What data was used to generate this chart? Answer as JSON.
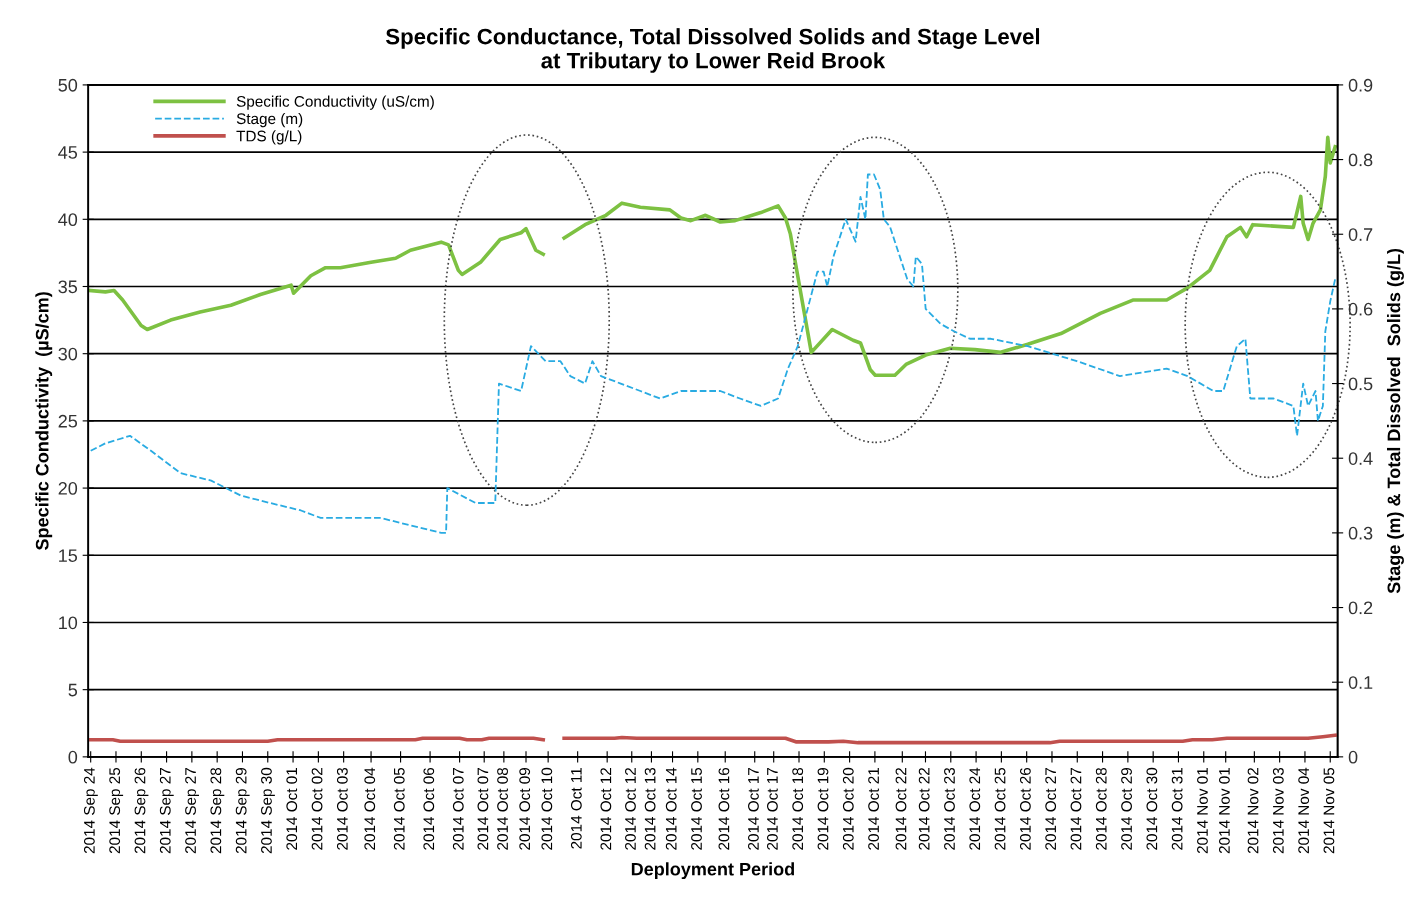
{
  "chart_data": {
    "type": "line",
    "title": "Specific Conductance, Total Dissolved Solids and Stage Level\nat Tributary to Lower Reid Brook",
    "xlabel": "Deployment Period",
    "ylabel": "Specific Conductivity  (µS/cm)",
    "y2label": "Stage (m) & Total Dissolved  Solids (g/L)",
    "xlim": [
      "2014-09-24T10:00",
      "2014-11-05T18:00"
    ],
    "xticks": [
      {
        "value": "2014-09-24T12:00",
        "label": "2014 Sep 24"
      },
      {
        "value": "2014-09-25T08:34",
        "label": "2014 Sep 25"
      },
      {
        "value": "2014-09-26T05:09",
        "label": "2014 Sep 26"
      },
      {
        "value": "2014-09-27T01:43",
        "label": "2014 Sep 27"
      },
      {
        "value": "2014-09-27T22:17",
        "label": "2014 Sep 27"
      },
      {
        "value": "2014-09-28T18:51",
        "label": "2014 Sep 28"
      },
      {
        "value": "2014-09-29T15:26",
        "label": "2014 Sep 29"
      },
      {
        "value": "2014-09-30T12:00",
        "label": "2014 Sep 30"
      },
      {
        "value": "2014-10-01T08:34",
        "label": "2014 Oct 01"
      },
      {
        "value": "2014-10-02T05:09",
        "label": "2014 Oct 02"
      },
      {
        "value": "2014-10-03T01:43",
        "label": "2014 Oct 03"
      },
      {
        "value": "2014-10-04T00:00",
        "label": "2014 Oct 04"
      },
      {
        "value": "2014-10-05T00:00",
        "label": "2014 Oct 05"
      },
      {
        "value": "2014-10-06T00:00",
        "label": "2014 Oct 06"
      },
      {
        "value": "2014-10-07T00:00",
        "label": "2014 Oct 07"
      },
      {
        "value": "2014-10-07T20:00",
        "label": "2014 Oct 07"
      },
      {
        "value": "2014-10-08T12:00",
        "label": "2014 Oct 08"
      },
      {
        "value": "2014-10-09T06:00",
        "label": "2014 Oct 09"
      },
      {
        "value": "2014-10-10T00:00",
        "label": "2014 Oct 10"
      },
      {
        "value": "2014-10-11T00:00",
        "label": "2014 Oct 11"
      },
      {
        "value": "2014-10-12T00:00",
        "label": "2014 Oct 12"
      },
      {
        "value": "2014-10-12T20:00",
        "label": "2014 Oct 12"
      },
      {
        "value": "2014-10-13T12:00",
        "label": "2014 Oct 13"
      },
      {
        "value": "2014-10-14T05:09",
        "label": "2014 Oct 14"
      },
      {
        "value": "2014-10-15T01:43",
        "label": "2014 Oct 15"
      },
      {
        "value": "2014-10-16T00:00",
        "label": "2014 Oct 16"
      },
      {
        "value": "2014-10-17T00:00",
        "label": "2014 Oct 17"
      },
      {
        "value": "2014-10-17T15:26",
        "label": "2014 Oct 17"
      },
      {
        "value": "2014-10-18T12:00",
        "label": "2014 Oct 18"
      },
      {
        "value": "2014-10-19T08:34",
        "label": "2014 Oct 19"
      },
      {
        "value": "2014-10-20T05:09",
        "label": "2014 Oct 20"
      },
      {
        "value": "2014-10-21T01:43",
        "label": "2014 Oct 21"
      },
      {
        "value": "2014-10-22T00:00",
        "label": "2014 Oct 22"
      },
      {
        "value": "2014-10-22T18:51",
        "label": "2014 Oct 22"
      },
      {
        "value": "2014-10-23T15:26",
        "label": "2014 Oct 23"
      },
      {
        "value": "2014-10-24T12:00",
        "label": "2014 Oct 24"
      },
      {
        "value": "2014-10-25T08:34",
        "label": "2014 Oct 25"
      },
      {
        "value": "2014-10-26T05:09",
        "label": "2014 Oct 26"
      },
      {
        "value": "2014-10-27T01:43",
        "label": "2014 Oct 27"
      },
      {
        "value": "2014-10-27T22:17",
        "label": "2014 Oct 27"
      },
      {
        "value": "2014-10-28T18:51",
        "label": "2014 Oct 28"
      },
      {
        "value": "2014-10-29T15:26",
        "label": "2014 Oct 29"
      },
      {
        "value": "2014-10-30T12:00",
        "label": "2014 Oct 30"
      },
      {
        "value": "2014-10-31T08:34",
        "label": "2014 Oct 31"
      },
      {
        "value": "2014-11-01T05:09",
        "label": "2014 Nov 01"
      },
      {
        "value": "2014-11-01T23:00",
        "label": "2014 Nov 01"
      },
      {
        "value": "2014-11-02T22:17",
        "label": "2014 Nov 02"
      },
      {
        "value": "2014-11-03T18:51",
        "label": "2014 Nov 03"
      },
      {
        "value": "2014-11-04T15:26",
        "label": "2014 Nov 04"
      },
      {
        "value": "2014-11-05T12:00",
        "label": "2014 Nov 05"
      }
    ],
    "ylim": [
      0,
      50
    ],
    "yticks": [
      0,
      5,
      10,
      15,
      20,
      25,
      30,
      35,
      40,
      45,
      50
    ],
    "y2lim": [
      0,
      0.9
    ],
    "y2ticks": [
      0,
      0.1,
      0.2,
      0.3,
      0.4,
      0.5,
      0.6,
      0.7,
      0.8,
      0.9
    ],
    "grid": "y",
    "legend": "top left",
    "series": [
      {
        "name": "Specific Conductivity (uS/cm)",
        "color": "#7dc142",
        "line_style": "solid",
        "x": [
          "2014-09-24T12:00",
          "2014-09-25T00:00",
          "2014-09-25T07:00",
          "2014-09-25T14:00",
          "2014-09-26T05:00",
          "2014-09-26T10:00",
          "2014-09-27T05:00",
          "2014-09-28T05:00",
          "2014-09-29T06:00",
          "2014-09-30T06:00",
          "2014-10-01T07:00",
          "2014-10-01T09:00",
          "2014-10-01T23:00",
          "2014-10-02T11:00",
          "2014-10-02T23:00",
          "2014-10-04T00:00",
          "2014-10-04T20:00",
          "2014-10-05T08:00",
          "2014-10-06T09:00",
          "2014-10-06T15:00",
          "2014-10-06T23:00",
          "2014-10-07T02:00",
          "2014-10-07T17:00",
          "2014-10-08T09:00",
          "2014-10-09T02:00",
          "2014-10-09T06:00",
          "2014-10-09T14:00",
          "2014-10-09T20:00",
          "2014-10-10T02:00",
          "2014-10-10T13:00",
          "2014-10-11T06:00",
          "2014-10-11T23:00",
          "2014-10-12T12:00",
          "2014-10-13T03:00",
          "2014-10-14T03:00",
          "2014-10-14T12:00",
          "2014-10-14T20:00",
          "2014-10-15T08:00",
          "2014-10-15T20:00",
          "2014-10-16T08:00",
          "2014-10-17T05:00",
          "2014-10-17T19:00",
          "2014-10-18T01:00",
          "2014-10-18T05:00",
          "2014-10-18T09:00",
          "2014-10-18T22:00",
          "2014-10-19T15:00",
          "2014-10-20T08:00",
          "2014-10-20T14:00",
          "2014-10-20T22:00",
          "2014-10-21T02:00",
          "2014-10-21T18:00",
          "2014-10-22T03:00",
          "2014-10-22T19:00",
          "2014-10-23T15:00",
          "2014-10-24T11:00",
          "2014-10-25T08:00",
          "2014-10-26T06:00",
          "2014-10-27T09:00",
          "2014-10-28T17:00",
          "2014-10-29T20:00",
          "2014-10-30T23:00",
          "2014-10-31T16:00",
          "2014-11-01T10:00",
          "2014-11-02T00:00",
          "2014-11-02T11:00",
          "2014-11-02T16:00",
          "2014-11-02T21:00",
          "2014-11-04T06:00",
          "2014-11-04T12:00",
          "2014-11-04T14:00",
          "2014-11-04T18:00",
          "2014-11-04T22:00",
          "2014-11-05T04:00",
          "2014-11-05T08:00",
          "2014-11-05T10:00",
          "2014-11-05T12:00",
          "2014-11-05T16:00"
        ],
        "values": [
          34.7,
          34.6,
          34.7,
          34.0,
          32.1,
          31.8,
          32.5,
          33.1,
          33.6,
          34.4,
          35.1,
          34.5,
          35.8,
          36.4,
          36.4,
          36.8,
          37.1,
          37.7,
          38.3,
          38.1,
          36.2,
          35.9,
          36.8,
          38.5,
          39.0,
          39.3,
          37.7,
          37.4,
          null,
          38.6,
          39.6,
          40.3,
          41.2,
          40.9,
          40.7,
          40.1,
          39.9,
          40.3,
          39.8,
          39.9,
          40.5,
          41.0,
          40.1,
          38.9,
          36.8,
          30.1,
          31.8,
          31.0,
          30.8,
          28.8,
          28.4,
          28.4,
          29.2,
          29.9,
          30.4,
          30.3,
          30.1,
          30.7,
          31.5,
          33.0,
          34.0,
          34.0,
          34.9,
          36.2,
          38.7,
          39.4,
          38.7,
          39.6,
          39.4,
          41.7,
          39.7,
          38.5,
          39.7,
          40.7,
          43.2,
          46.1,
          44.2,
          45.4
        ]
      },
      {
        "name": "Stage (m)",
        "color": "#29abe2",
        "line_style": "dashed",
        "axis": "y2",
        "x": [
          "2014-09-24T12:00",
          "2014-09-25T00:00",
          "2014-09-25T20:00",
          "2014-09-26T13:00",
          "2014-09-27T13:00",
          "2014-09-28T14:00",
          "2014-09-29T14:00",
          "2014-09-30T14:00",
          "2014-10-01T15:00",
          "2014-10-02T07:00",
          "2014-10-03T07:00",
          "2014-10-04T08:00",
          "2014-10-05T08:00",
          "2014-10-06T09:00",
          "2014-10-06T13:00",
          "2014-10-06T14:00",
          "2014-10-07T13:00",
          "2014-10-08T05:00",
          "2014-10-08T08:00",
          "2014-10-09T02:00",
          "2014-10-09T10:00",
          "2014-10-09T22:00",
          "2014-10-10T10:00",
          "2014-10-10T18:00",
          "2014-10-11T06:00",
          "2014-10-11T12:00",
          "2014-10-11T19:00",
          "2014-10-12T11:00",
          "2014-10-13T03:00",
          "2014-10-13T19:00",
          "2014-10-14T12:00",
          "2014-10-15T04:00",
          "2014-10-15T20:00",
          "2014-10-16T12:00",
          "2014-10-17T05:00",
          "2014-10-17T19:00",
          "2014-10-18T03:00",
          "2014-10-18T11:00",
          "2014-10-18T19:00",
          "2014-10-19T03:00",
          "2014-10-19T08:00",
          "2014-10-19T11:00",
          "2014-10-19T16:00",
          "2014-10-20T02:00",
          "2014-10-20T10:00",
          "2014-10-20T14:00",
          "2014-10-20T18:00",
          "2014-10-20T20:00",
          "2014-10-21T01:00",
          "2014-10-21T06:00",
          "2014-10-21T09:00",
          "2014-10-21T14:00",
          "2014-10-21T20:00",
          "2014-10-22T04:00",
          "2014-10-22T09:00",
          "2014-10-22T11:00",
          "2014-10-22T16:00",
          "2014-10-22T19:00",
          "2014-10-23T07:00",
          "2014-10-23T18:00",
          "2014-10-24T07:00",
          "2014-10-25T00:00",
          "2014-10-26T06:00",
          "2014-10-27T22:00",
          "2014-10-29T09:00",
          "2014-10-30T23:00",
          "2014-10-31T16:00",
          "2014-11-01T13:00",
          "2014-11-01T21:00",
          "2014-11-02T08:00",
          "2014-11-02T15:00",
          "2014-11-02T19:00",
          "2014-11-03T14:00",
          "2014-11-04T06:00",
          "2014-11-04T09:00",
          "2014-11-04T14:00",
          "2014-11-04T18:00",
          "2014-11-05T00:00",
          "2014-11-05T02:00",
          "2014-11-05T06:00",
          "2014-11-05T08:00",
          "2014-11-05T12:00",
          "2014-11-05T16:00"
        ],
        "values": [
          0.41,
          0.42,
          0.43,
          0.41,
          0.38,
          0.37,
          0.35,
          0.34,
          0.33,
          0.32,
          0.32,
          0.32,
          0.31,
          0.3,
          0.3,
          0.36,
          0.34,
          0.34,
          0.5,
          0.49,
          0.55,
          0.53,
          0.53,
          0.51,
          0.5,
          0.53,
          0.51,
          0.5,
          0.49,
          0.48,
          0.49,
          0.49,
          0.49,
          0.48,
          0.47,
          0.48,
          0.52,
          0.55,
          0.6,
          0.65,
          0.65,
          0.63,
          0.67,
          0.72,
          0.69,
          0.75,
          0.72,
          0.78,
          0.78,
          0.76,
          0.72,
          0.71,
          0.68,
          0.64,
          0.63,
          0.67,
          0.66,
          0.6,
          0.58,
          0.57,
          0.56,
          0.56,
          0.55,
          0.53,
          0.51,
          0.52,
          0.51,
          0.49,
          0.49,
          0.55,
          0.56,
          0.48,
          0.48,
          0.47,
          0.43,
          0.5,
          0.47,
          0.49,
          0.45,
          0.47,
          0.57,
          0.61,
          0.64
        ]
      },
      {
        "name": "TDS (g/L)",
        "color": "#c0504d",
        "line_style": "solid",
        "axis": "y2",
        "x": [
          "2014-09-24T12:00",
          "2014-09-25T06:00",
          "2014-09-25T12:00",
          "2014-09-30T12:00",
          "2014-09-30T20:00",
          "2014-10-05T12:00",
          "2014-10-05T18:00",
          "2014-10-07T00:00",
          "2014-10-07T06:00",
          "2014-10-07T18:00",
          "2014-10-08T00:00",
          "2014-10-09T12:00",
          "2014-10-09T20:00",
          "2014-10-10T02:00",
          "2014-10-10T13:00",
          "2014-10-12T06:00",
          "2014-10-12T12:00",
          "2014-10-13T00:00",
          "2014-10-18T01:00",
          "2014-10-18T10:00",
          "2014-10-19T12:00",
          "2014-10-20T00:00",
          "2014-10-20T12:00",
          "2014-10-27T00:00",
          "2014-10-27T08:00",
          "2014-10-31T12:00",
          "2014-10-31T20:00",
          "2014-11-01T12:00",
          "2014-11-02T00:00",
          "2014-11-04T18:00",
          "2014-11-05T06:00",
          "2014-11-05T16:00"
        ],
        "values": [
          0.023,
          0.023,
          0.021,
          0.021,
          0.023,
          0.023,
          0.025,
          0.025,
          0.023,
          0.023,
          0.025,
          0.025,
          0.023,
          null,
          0.025,
          0.025,
          0.026,
          0.025,
          0.025,
          0.02,
          0.02,
          0.021,
          0.019,
          0.019,
          0.021,
          0.021,
          0.023,
          0.023,
          0.025,
          0.025,
          0.027,
          0.029
        ]
      }
    ]
  }
}
